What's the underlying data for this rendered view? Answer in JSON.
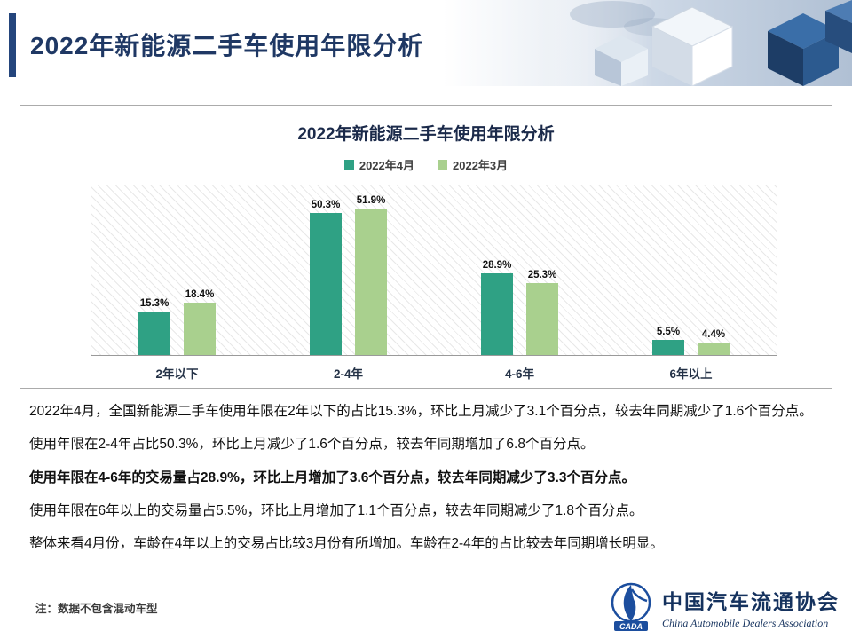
{
  "header": {
    "title": "2022年新能源二手车使用年限分析"
  },
  "chart_data": {
    "type": "bar",
    "title": "2022年新能源二手车使用年限分析",
    "categories": [
      "2年以下",
      "2-4年",
      "4-6年",
      "6年以上"
    ],
    "series": [
      {
        "name": "2022年4月",
        "color": "#2FA184",
        "values": [
          15.3,
          50.3,
          28.9,
          5.5
        ]
      },
      {
        "name": "2022年3月",
        "color": "#A9D08E",
        "values": [
          18.4,
          51.9,
          25.3,
          4.4
        ]
      }
    ],
    "ylim": [
      0,
      60
    ],
    "value_suffix": "%",
    "legend_position": "top",
    "grid": false,
    "plot_background": "diagonal-hatch"
  },
  "analysis": {
    "paragraphs": [
      {
        "text": "2022年4月，全国新能源二手车使用年限在2年以下的占比15.3%，环比上月减少了3.1个百分点，较去年同期减少了1.6个百分点。",
        "bold": false
      },
      {
        "text": "使用年限在2-4年占比50.3%，环比上月减少了1.6个百分点，较去年同期增加了6.8个百分点。",
        "bold": false
      },
      {
        "text": "使用年限在4-6年的交易量占28.9%，环比上月增加了3.6个百分点，较去年同期减少了3.3个百分点。",
        "bold": true
      },
      {
        "text": "使用年限在6年以上的交易量占5.5%，环比上月增加了1.1个百分点，较去年同期减少了1.8个百分点。",
        "bold": false
      },
      {
        "text": "整体来看4月份，车龄在4年以上的交易占比较3月份有所增加。车龄在2-4年的占比较去年同期增长明显。",
        "bold": false
      }
    ],
    "note": "注：数据不包含混动车型"
  },
  "logo": {
    "acronym": "CADA",
    "name_cn": "中国汽车流通协会",
    "name_en": "China Automobile Dealers Association"
  }
}
